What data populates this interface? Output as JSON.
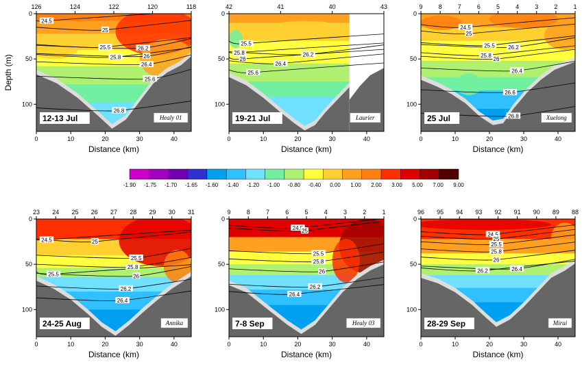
{
  "chart_data": {
    "type": "heatmap",
    "xlabel": "Distance (km)",
    "ylabel": "Depth (m)",
    "xlim": [
      0,
      45
    ],
    "ylim": [
      0,
      130
    ],
    "x_ticks": [
      0,
      10,
      20,
      30,
      40
    ],
    "y_ticks": [
      0,
      50,
      100
    ],
    "colorbar": {
      "labels": [
        "-1.90",
        "-1.75",
        "-1.70",
        "-1.65",
        "-1.60",
        "-1.40",
        "-1.20",
        "-1.00",
        "-0.80",
        "-0.40",
        "0.00",
        "1.00",
        "2.00",
        "3.00",
        "5.00",
        "7.00",
        "9.00"
      ],
      "colors": [
        "#cc00cc",
        "#a000c0",
        "#7000b0",
        "#3030d0",
        "#00a0f0",
        "#30c0ff",
        "#70e0ff",
        "#70f0a0",
        "#b0f070",
        "#ffff40",
        "#ffd030",
        "#ffa020",
        "#ff8010",
        "#ff3000",
        "#e00000",
        "#a00000",
        "#500000"
      ]
    },
    "panels": [
      {
        "date": "12-13 Jul",
        "ship": "Healy 01",
        "stations": [
          "126",
          "124",
          "122",
          "120",
          "118"
        ],
        "contours": [
          {
            "label": "24.5",
            "x": 3,
            "y": 8
          },
          {
            "label": "25",
            "x": 20,
            "y": 18
          },
          {
            "label": "25.5",
            "x": 20,
            "y": 37
          },
          {
            "label": "25.8",
            "x": 23,
            "y": 48
          },
          {
            "label": "26.2",
            "x": 31,
            "y": 38
          },
          {
            "label": "26",
            "x": 32,
            "y": 47
          },
          {
            "label": "26.4",
            "x": 32,
            "y": 56
          },
          {
            "label": "25.6",
            "x": 33,
            "y": 72
          },
          {
            "label": "26.8",
            "x": 24,
            "y": 107
          }
        ]
      },
      {
        "date": "19-21 Jul",
        "ship": "Laurier",
        "stations": [
          "42",
          "41",
          "40",
          "43"
        ],
        "contours": [
          {
            "label": "25.5",
            "x": 5,
            "y": 33
          },
          {
            "label": "25.8",
            "x": 3,
            "y": 43
          },
          {
            "label": "26",
            "x": 4,
            "y": 50
          },
          {
            "label": "26.4",
            "x": 15,
            "y": 55
          },
          {
            "label": "26.2",
            "x": 23,
            "y": 45
          },
          {
            "label": "25.6",
            "x": 7,
            "y": 65
          }
        ]
      },
      {
        "date": "25 Jul",
        "ship": "Xuelong",
        "stations": [
          "9",
          "8",
          "7",
          "6",
          "5",
          "4",
          "3",
          "2",
          "1"
        ],
        "contours": [
          {
            "label": "24.5",
            "x": 13,
            "y": 15
          },
          {
            "label": "25",
            "x": 14,
            "y": 22
          },
          {
            "label": "25.5",
            "x": 20,
            "y": 35
          },
          {
            "label": "25.8",
            "x": 19,
            "y": 46
          },
          {
            "label": "26",
            "x": 22,
            "y": 50
          },
          {
            "label": "26.2",
            "x": 27,
            "y": 37
          },
          {
            "label": "26.4",
            "x": 28,
            "y": 63
          },
          {
            "label": "26.6",
            "x": 26,
            "y": 87
          },
          {
            "label": "26.8",
            "x": 27,
            "y": 113
          }
        ]
      },
      {
        "date": "24-25 Aug",
        "ship": "Annika",
        "stations": [
          "23",
          "24",
          "25",
          "26",
          "27",
          "28",
          "29",
          "30",
          "31"
        ],
        "contours": [
          {
            "label": "24.5",
            "x": 3,
            "y": 23
          },
          {
            "label": "25",
            "x": 17,
            "y": 25
          },
          {
            "label": "25.5",
            "x": 5,
            "y": 61
          },
          {
            "label": "25.5",
            "x": 29,
            "y": 43
          },
          {
            "label": "25.8",
            "x": 28,
            "y": 53
          },
          {
            "label": "26",
            "x": 29,
            "y": 63
          },
          {
            "label": "26.2",
            "x": 26,
            "y": 77
          },
          {
            "label": "26.4",
            "x": 25,
            "y": 90
          }
        ]
      },
      {
        "date": "7-8 Sep",
        "ship": "Healy 03",
        "stations": [
          "9",
          "8",
          "7",
          "6",
          "5",
          "4",
          "3",
          "2",
          "1"
        ],
        "contours": [
          {
            "label": "24.5",
            "x": 20,
            "y": 10
          },
          {
            "label": "25",
            "x": 22,
            "y": 13
          },
          {
            "label": "25.5",
            "x": 26,
            "y": 38
          },
          {
            "label": "25.8",
            "x": 26,
            "y": 47
          },
          {
            "label": "26",
            "x": 27,
            "y": 58
          },
          {
            "label": "26.2",
            "x": 25,
            "y": 75
          },
          {
            "label": "26.4",
            "x": 19,
            "y": 83
          }
        ]
      },
      {
        "date": "28-29 Sep",
        "ship": "Mirai",
        "stations": [
          "96",
          "95",
          "94",
          "93",
          "92",
          "91",
          "90",
          "89",
          "88"
        ],
        "contours": [
          {
            "label": "24.5",
            "x": 21,
            "y": 17
          },
          {
            "label": "25",
            "x": 22,
            "y": 22
          },
          {
            "label": "25.5",
            "x": 22,
            "y": 28
          },
          {
            "label": "25.8",
            "x": 22,
            "y": 36
          },
          {
            "label": "26",
            "x": 22,
            "y": 45
          },
          {
            "label": "26.2",
            "x": 18,
            "y": 57
          },
          {
            "label": "26.4",
            "x": 28,
            "y": 55
          }
        ]
      }
    ]
  }
}
